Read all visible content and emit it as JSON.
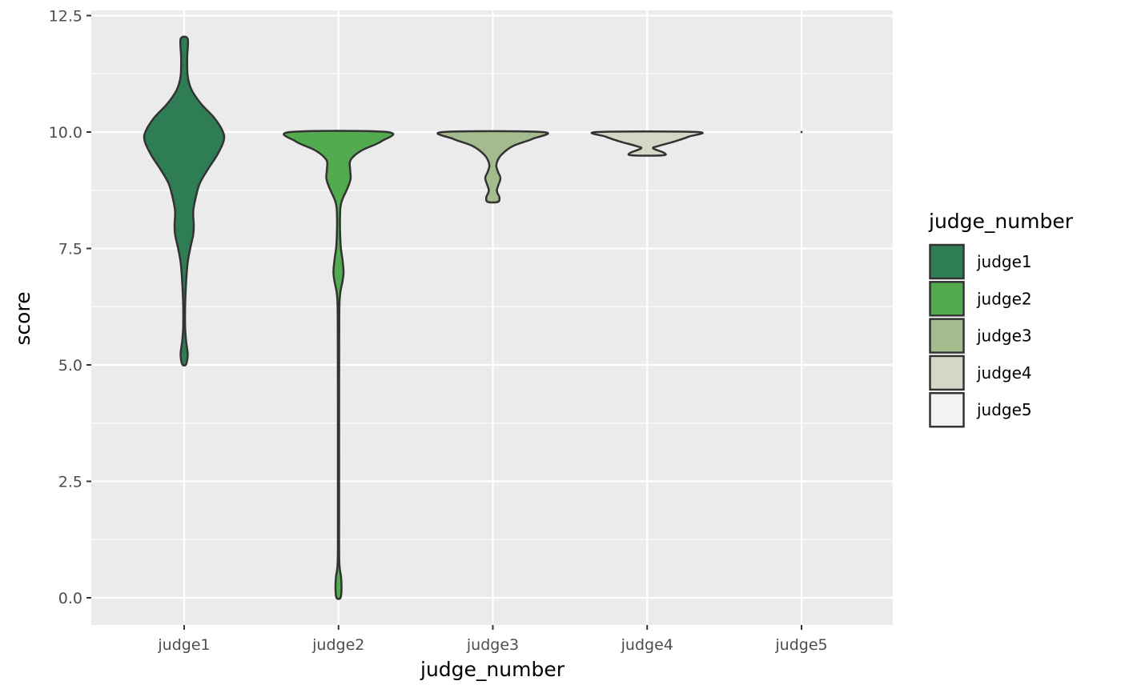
{
  "chart_data": {
    "type": "violin",
    "xlabel": "judge_number",
    "ylabel": "score",
    "categories": [
      "judge1",
      "judge2",
      "judge3",
      "judge4",
      "judge5"
    ],
    "ylim": [
      -0.6,
      12.6
    ],
    "yticks": [
      "0.0",
      "2.5",
      "5.0",
      "7.5",
      "10.0",
      "12.5"
    ],
    "ytick_values": [
      0,
      2.5,
      5,
      7.5,
      10,
      12.5
    ],
    "grid": true,
    "panel_background": "#ebebeb",
    "legend": {
      "title": "judge_number",
      "placement": "right",
      "entries": [
        "judge1",
        "judge2",
        "judge3",
        "judge4",
        "judge5"
      ]
    },
    "colors": [
      "#2e7d55",
      "#52ab4f",
      "#a3bb8d",
      "#d3d7c6",
      "#f2f2f0"
    ],
    "outline_color": "#333333",
    "series": [
      {
        "name": "judge1",
        "profile": [
          [
            5.0,
            0.03
          ],
          [
            5.1,
            0.06
          ],
          [
            5.25,
            0.07
          ],
          [
            5.5,
            0.04
          ],
          [
            5.8,
            0.02
          ],
          [
            6.3,
            0.02
          ],
          [
            6.8,
            0.04
          ],
          [
            7.2,
            0.07
          ],
          [
            7.5,
            0.12
          ],
          [
            7.8,
            0.18
          ],
          [
            8.0,
            0.19
          ],
          [
            8.3,
            0.18
          ],
          [
            8.6,
            0.23
          ],
          [
            8.9,
            0.31
          ],
          [
            9.2,
            0.47
          ],
          [
            9.5,
            0.65
          ],
          [
            9.8,
            0.78
          ],
          [
            10.0,
            0.77
          ],
          [
            10.3,
            0.6
          ],
          [
            10.6,
            0.34
          ],
          [
            10.9,
            0.15
          ],
          [
            11.2,
            0.07
          ],
          [
            11.6,
            0.06
          ],
          [
            12.0,
            0.07
          ]
        ]
      },
      {
        "name": "judge2",
        "profile": [
          [
            0.0,
            0.04
          ],
          [
            0.2,
            0.06
          ],
          [
            0.45,
            0.05
          ],
          [
            0.8,
            0.015
          ],
          [
            2.0,
            0.012
          ],
          [
            4.0,
            0.012
          ],
          [
            6.0,
            0.015
          ],
          [
            6.5,
            0.03
          ],
          [
            6.8,
            0.08
          ],
          [
            7.0,
            0.1
          ],
          [
            7.25,
            0.08
          ],
          [
            7.6,
            0.04
          ],
          [
            8.2,
            0.03
          ],
          [
            8.5,
            0.06
          ],
          [
            8.8,
            0.18
          ],
          [
            9.0,
            0.24
          ],
          [
            9.2,
            0.23
          ],
          [
            9.4,
            0.24
          ],
          [
            9.6,
            0.45
          ],
          [
            9.8,
            0.85
          ],
          [
            10.0,
            0.96
          ]
        ]
      },
      {
        "name": "judge3",
        "profile": [
          [
            8.5,
            0.1
          ],
          [
            8.6,
            0.13
          ],
          [
            8.75,
            0.08
          ],
          [
            9.0,
            0.15
          ],
          [
            9.15,
            0.1
          ],
          [
            9.3,
            0.07
          ],
          [
            9.5,
            0.16
          ],
          [
            9.7,
            0.4
          ],
          [
            9.85,
            0.78
          ],
          [
            10.0,
            0.99
          ]
        ]
      },
      {
        "name": "judge4",
        "profile": [
          [
            9.5,
            0.3
          ],
          [
            9.55,
            0.34
          ],
          [
            9.65,
            0.12
          ],
          [
            9.7,
            0.22
          ],
          [
            9.8,
            0.55
          ],
          [
            9.9,
            0.82
          ],
          [
            10.0,
            0.99
          ]
        ]
      },
      {
        "name": "judge5",
        "profile": [
          [
            10.0,
            0.01
          ]
        ]
      }
    ]
  }
}
